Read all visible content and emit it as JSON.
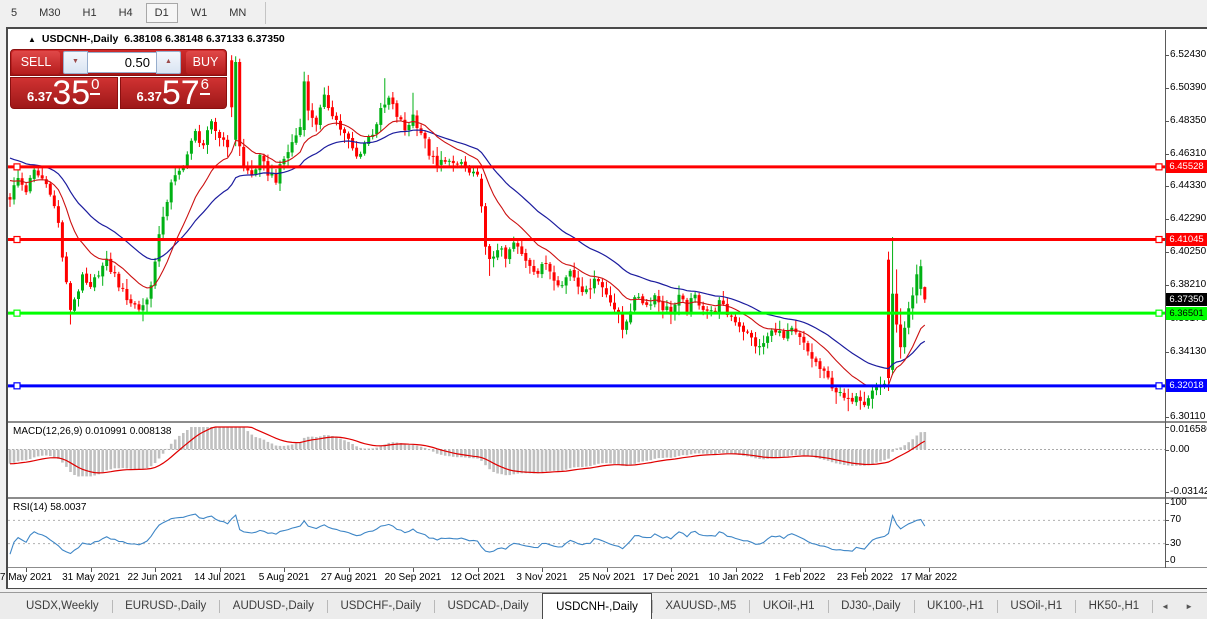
{
  "toolbar": {
    "timeframes": [
      "5",
      "M30",
      "H1",
      "H4",
      "D1",
      "W1",
      "MN"
    ],
    "active": "D1"
  },
  "chart": {
    "title": {
      "arrow": "▲",
      "symbol": "USDCNH-,Daily",
      "ohlc": "6.38108 6.38148 6.37133 6.37350"
    }
  },
  "trade": {
    "sell_label": "SELL",
    "buy_label": "BUY",
    "volume": "0.50",
    "sell": {
      "prefix": "6.37",
      "big": "35",
      "sup": "0"
    },
    "buy": {
      "prefix": "6.37",
      "big": "57",
      "sup": "6"
    }
  },
  "price_axis": {
    "ticks": [
      "6.52430",
      "6.50390",
      "6.48350",
      "6.46310",
      "6.44330",
      "6.42290",
      "6.40250",
      "6.38210",
      "6.36170",
      "6.34130",
      "6.30110"
    ],
    "current_price": {
      "label": "6.37350",
      "value": 6.3735,
      "bg": "#000000",
      "text": "#ffffff"
    }
  },
  "levels": [
    {
      "name": "resistance-line-1",
      "label": "6.45528",
      "value": 6.45528,
      "color": "#ff0000",
      "badge_text": "#ffffff",
      "width": 3
    },
    {
      "name": "resistance-line-2",
      "label": "6.41045",
      "value": 6.41045,
      "color": "#ff0000",
      "badge_text": "#ffffff",
      "width": 3
    },
    {
      "name": "support-line-green",
      "label": "6.36501",
      "value": 6.36501,
      "color": "#00ff00",
      "badge_text": "#000000",
      "width": 3
    },
    {
      "name": "support-line-blue",
      "label": "6.32018",
      "value": 6.32018,
      "color": "#0000ff",
      "badge_text": "#ffffff",
      "width": 3
    }
  ],
  "macd": {
    "label": "MACD(12,26,9) 0.010991 0.008138",
    "axis": [
      {
        "label": "0.016586",
        "value": 0.016586
      },
      {
        "label": "0.00",
        "value": 0
      },
      {
        "label": "-0.03142",
        "value": -0.03142
      }
    ]
  },
  "rsi": {
    "label": "RSI(14) 58.0037",
    "axis": [
      {
        "label": "100",
        "value": 100
      },
      {
        "label": "70",
        "value": 70
      },
      {
        "label": "30",
        "value": 30
      },
      {
        "label": "0",
        "value": 0
      }
    ],
    "guide_levels": [
      70,
      30
    ]
  },
  "date_axis": [
    "7 May 2021",
    "31 May 2021",
    "22 Jun 2021",
    "14 Jul 2021",
    "5 Aug 2021",
    "27 Aug 2021",
    "20 Sep 2021",
    "12 Oct 2021",
    "3 Nov 2021",
    "25 Nov 2021",
    "17 Dec 2021",
    "10 Jan 2022",
    "1 Feb 2022",
    "23 Feb 2022",
    "17 Mar 2022"
  ],
  "tabs": {
    "items": [
      "USDX,Weekly",
      "EURUSD-,Daily",
      "AUDUSD-,Daily",
      "USDCHF-,Daily",
      "USDCAD-,Daily",
      "USDCNH-,Daily",
      "XAUUSD-,M5",
      "UKOil-,H1",
      "DJ30-,Daily",
      "UK100-,H1",
      "USOil-,H1",
      "HK50-,H1"
    ],
    "active_index": 5,
    "arrows": [
      "◄",
      "►"
    ]
  },
  "colors": {
    "candle_up": "#00b114",
    "candle_down": "#ff0000",
    "ma_fast": "#cc1111",
    "ma_slow": "#1c1c9e",
    "macd_hist": "#c0c0c0",
    "macd_signal": "#e00000",
    "rsi_line": "#3e86c6",
    "guide_dash": "#b0b0b0"
  },
  "chart_data": {
    "type": "candlestick",
    "symbol": "USDCNH-",
    "timeframe": "Daily",
    "bars": 228,
    "last_bar_ohlc": {
      "open": 6.38108,
      "high": 6.38148,
      "low": 6.37133,
      "close": 6.3735
    },
    "visible_price_range": [
      6.295,
      6.53
    ],
    "indicators": [
      "MA fast (red)",
      "MA slow (blue)",
      "MACD(12,26,9)",
      "RSI(14)"
    ],
    "macd_range": [
      -0.03142,
      0.016586
    ],
    "rsi_last": 58.0037,
    "close_anchors": [
      [
        -45,
        6.52
      ],
      [
        -28,
        6.478
      ],
      [
        -12,
        6.452
      ],
      [
        -2,
        6.44
      ],
      [
        0,
        6.437
      ],
      [
        2,
        6.448
      ],
      [
        4,
        6.441
      ],
      [
        6,
        6.452
      ],
      [
        8,
        6.448
      ],
      [
        10,
        6.441
      ],
      [
        12,
        6.42
      ],
      [
        13,
        6.4
      ],
      [
        14,
        6.382
      ],
      [
        15,
        6.368
      ],
      [
        16,
        6.374
      ],
      [
        18,
        6.386
      ],
      [
        20,
        6.379
      ],
      [
        22,
        6.391
      ],
      [
        24,
        6.396
      ],
      [
        26,
        6.388
      ],
      [
        28,
        6.378
      ],
      [
        30,
        6.372
      ],
      [
        32,
        6.368
      ],
      [
        34,
        6.373
      ],
      [
        36,
        6.396
      ],
      [
        38,
        6.426
      ],
      [
        40,
        6.444
      ],
      [
        42,
        6.452
      ],
      [
        44,
        6.463
      ],
      [
        46,
        6.476
      ],
      [
        48,
        6.469
      ],
      [
        50,
        6.481
      ],
      [
        52,
        6.474
      ],
      [
        54,
        6.47
      ],
      [
        55,
        6.492
      ],
      [
        56,
        6.52
      ],
      [
        57,
        6.468
      ],
      [
        58,
        6.455
      ],
      [
        60,
        6.45
      ],
      [
        62,
        6.46
      ],
      [
        64,
        6.452
      ],
      [
        66,
        6.448
      ],
      [
        68,
        6.46
      ],
      [
        70,
        6.47
      ],
      [
        72,
        6.48
      ],
      [
        73,
        6.508
      ],
      [
        74,
        6.49
      ],
      [
        76,
        6.483
      ],
      [
        78,
        6.497
      ],
      [
        80,
        6.489
      ],
      [
        82,
        6.479
      ],
      [
        84,
        6.471
      ],
      [
        86,
        6.461
      ],
      [
        88,
        6.47
      ],
      [
        90,
        6.477
      ],
      [
        92,
        6.489
      ],
      [
        94,
        6.497
      ],
      [
        96,
        6.487
      ],
      [
        98,
        6.478
      ],
      [
        100,
        6.487
      ],
      [
        102,
        6.477
      ],
      [
        104,
        6.464
      ],
      [
        106,
        6.455
      ],
      [
        108,
        6.461
      ],
      [
        110,
        6.455
      ],
      [
        112,
        6.458
      ],
      [
        114,
        6.451
      ],
      [
        116,
        6.448
      ],
      [
        117,
        6.431
      ],
      [
        118,
        6.406
      ],
      [
        119,
        6.396
      ],
      [
        121,
        6.406
      ],
      [
        123,
        6.398
      ],
      [
        125,
        6.408
      ],
      [
        127,
        6.401
      ],
      [
        129,
        6.396
      ],
      [
        131,
        6.39
      ],
      [
        133,
        6.396
      ],
      [
        135,
        6.388
      ],
      [
        137,
        6.382
      ],
      [
        139,
        6.392
      ],
      [
        141,
        6.384
      ],
      [
        143,
        6.377
      ],
      [
        145,
        6.388
      ],
      [
        147,
        6.381
      ],
      [
        149,
        6.374
      ],
      [
        151,
        6.362
      ],
      [
        152,
        6.355
      ],
      [
        154,
        6.368
      ],
      [
        156,
        6.376
      ],
      [
        158,
        6.37
      ],
      [
        160,
        6.376
      ],
      [
        162,
        6.369
      ],
      [
        164,
        6.366
      ],
      [
        166,
        6.374
      ],
      [
        168,
        6.368
      ],
      [
        170,
        6.375
      ],
      [
        172,
        6.369
      ],
      [
        174,
        6.365
      ],
      [
        176,
        6.371
      ],
      [
        178,
        6.365
      ],
      [
        180,
        6.361
      ],
      [
        182,
        6.355
      ],
      [
        184,
        6.349
      ],
      [
        186,
        6.343
      ],
      [
        188,
        6.35
      ],
      [
        190,
        6.356
      ],
      [
        192,
        6.349
      ],
      [
        194,
        6.354
      ],
      [
        196,
        6.349
      ],
      [
        198,
        6.341
      ],
      [
        200,
        6.334
      ],
      [
        202,
        6.327
      ],
      [
        204,
        6.321
      ],
      [
        206,
        6.314
      ],
      [
        208,
        6.31
      ],
      [
        210,
        6.316
      ],
      [
        212,
        6.311
      ],
      [
        214,
        6.317
      ],
      [
        216,
        6.321
      ],
      [
        217,
        6.322
      ],
      [
        218,
        6.325
      ],
      [
        219,
        6.377
      ],
      [
        220,
        6.358
      ],
      [
        221,
        6.344
      ],
      [
        222,
        6.356
      ],
      [
        223,
        6.368
      ],
      [
        224,
        6.376
      ],
      [
        225,
        6.389
      ],
      [
        226,
        6.394
      ],
      [
        227,
        6.3735
      ]
    ],
    "special_bars": {
      "55": [
        6.521,
        6.5242,
        6.486,
        6.492
      ],
      "56": [
        6.472,
        6.5235,
        6.468,
        6.52
      ],
      "57": [
        6.52,
        6.522,
        6.462,
        6.468
      ],
      "73": [
        6.478,
        6.514,
        6.474,
        6.508
      ],
      "74": [
        6.508,
        6.512,
        6.484,
        6.49
      ],
      "117": [
        6.448,
        6.451,
        6.427,
        6.431
      ],
      "118": [
        6.431,
        6.433,
        6.401,
        6.406
      ],
      "218": [
        6.398,
        6.403,
        6.317,
        6.325
      ],
      "219": [
        6.33,
        6.412,
        6.327,
        6.377
      ],
      "220": [
        6.377,
        6.392,
        6.353,
        6.358
      ],
      "221": [
        6.358,
        6.368,
        6.337,
        6.344
      ],
      "222": [
        6.344,
        6.36,
        6.34,
        6.356
      ],
      "223": [
        6.356,
        6.372,
        6.352,
        6.368
      ],
      "224": [
        6.368,
        6.381,
        6.361,
        6.376
      ],
      "225": [
        6.376,
        6.395,
        6.371,
        6.389
      ],
      "226": [
        6.38,
        6.398,
        6.376,
        6.394
      ],
      "227": [
        6.38108,
        6.38148,
        6.37133,
        6.3735
      ]
    },
    "high_overrides": {
      "93": 6.51,
      "100": 6.501
    },
    "low_overrides": {
      "15": 6.358,
      "33": 6.36,
      "119": 6.388,
      "152": 6.3495,
      "205": 6.309,
      "208": 6.3045,
      "212": 6.307
    }
  }
}
